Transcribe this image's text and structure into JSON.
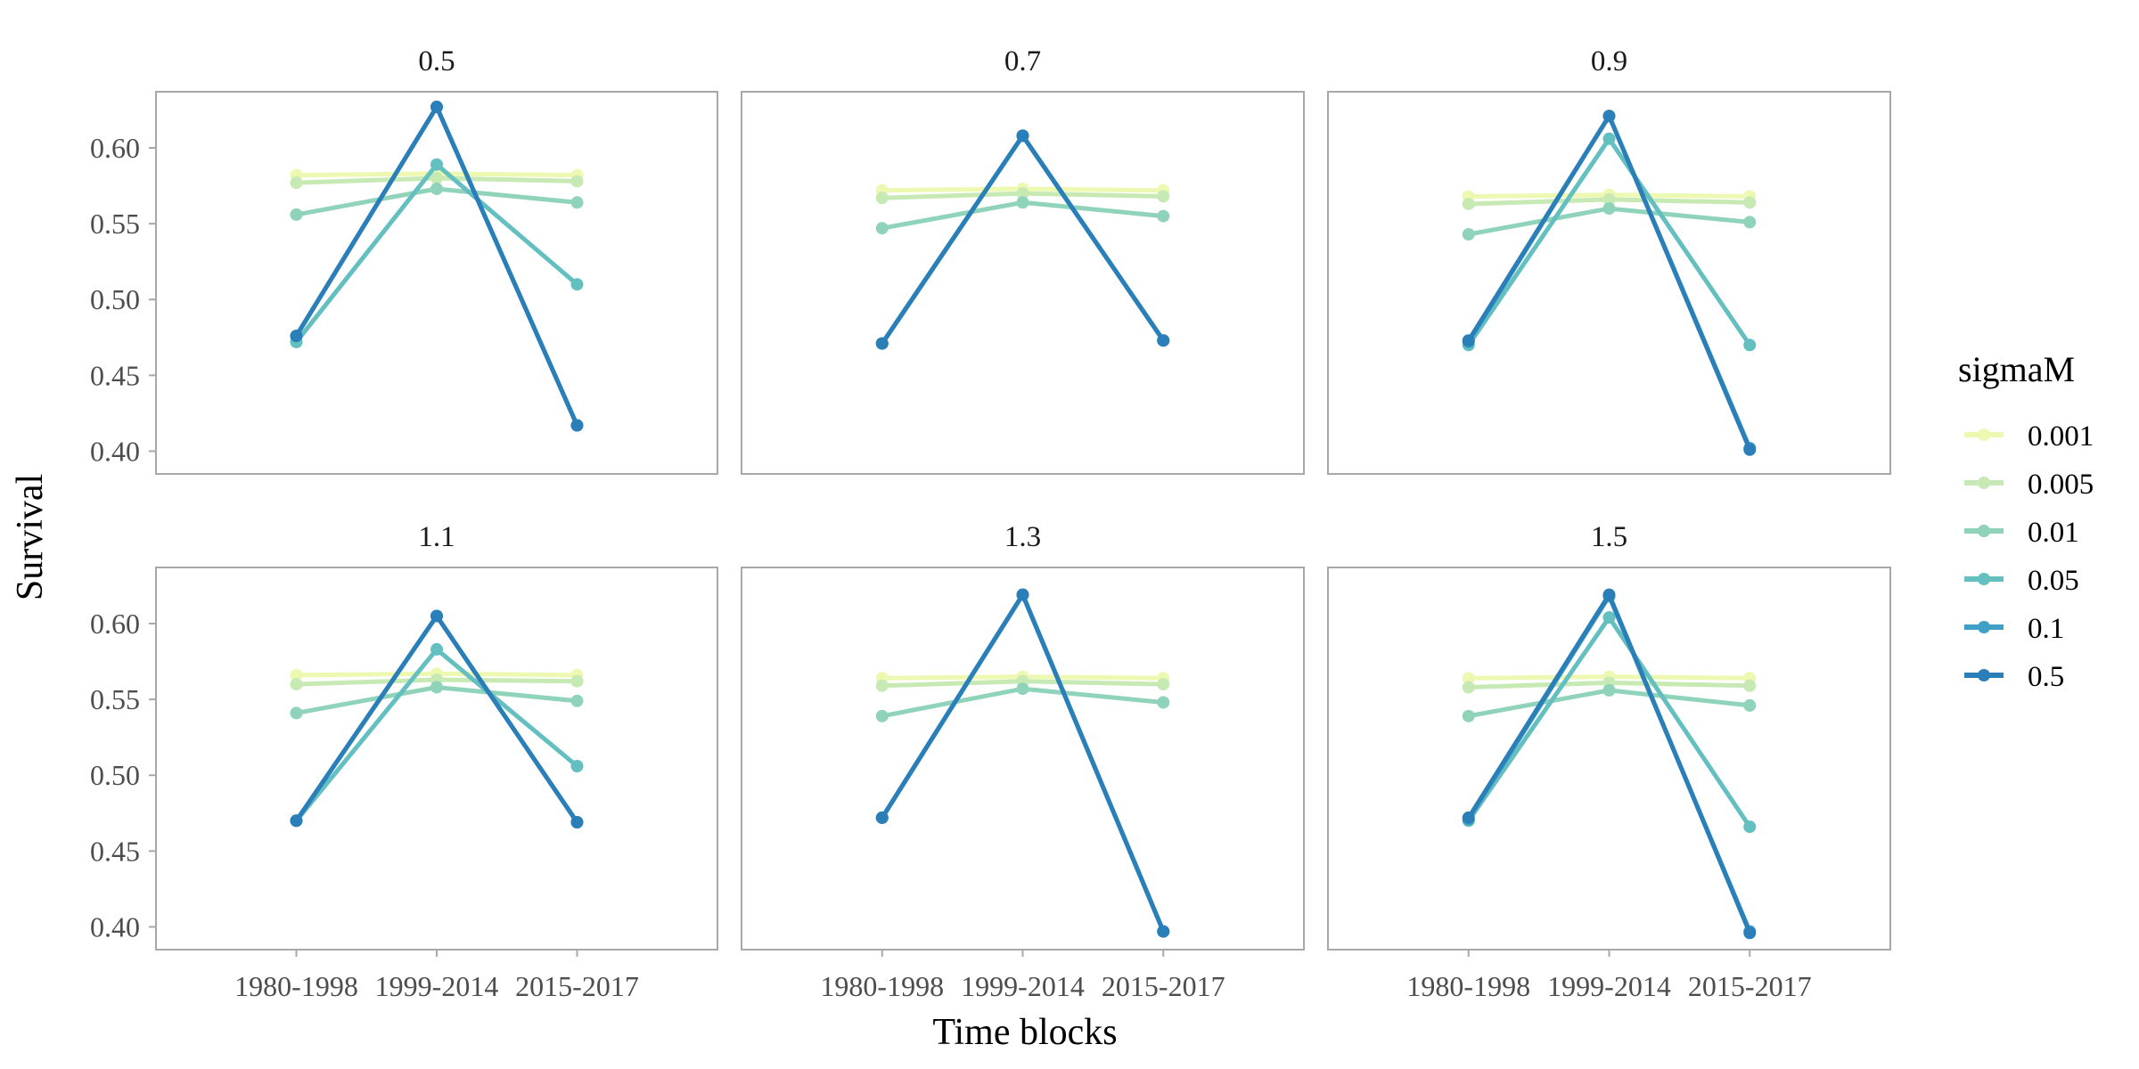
{
  "chart_data": {
    "type": "line",
    "xlabel": "Time blocks",
    "ylabel": "Survival",
    "categories": [
      "1980-1998",
      "1999-2014",
      "2015-2017"
    ],
    "ylim": [
      0.385,
      0.637
    ],
    "yticks": [
      0.4,
      0.45,
      0.5,
      0.55,
      0.6
    ],
    "ytick_labels": [
      "0.40",
      "0.45",
      "0.50",
      "0.55",
      "0.60"
    ],
    "grid": false,
    "legend": {
      "title": "sigmaM",
      "placement": "right",
      "entries": [
        "0.001",
        "0.005",
        "0.01",
        "0.05",
        "0.1",
        "0.5"
      ]
    },
    "series_colors": [
      "#EDF8B1",
      "#C7E9B4",
      "#8FD3BB",
      "#63BFC0",
      "#3E9FC7",
      "#2B7FB9"
    ],
    "facets": [
      {
        "title": "0.5",
        "series": [
          {
            "name": "0.001",
            "values": [
              0.582,
              0.583,
              0.582
            ]
          },
          {
            "name": "0.005",
            "values": [
              0.577,
              0.58,
              0.578
            ]
          },
          {
            "name": "0.01",
            "values": [
              0.556,
              0.573,
              0.564
            ]
          },
          {
            "name": "0.05",
            "values": [
              0.472,
              0.589,
              0.51
            ]
          },
          {
            "name": "0.1",
            "values": [
              0.476,
              0.627,
              0.417
            ]
          },
          {
            "name": "0.5",
            "values": [
              0.476,
              0.627,
              0.417
            ]
          }
        ]
      },
      {
        "title": "0.7",
        "series": [
          {
            "name": "0.001",
            "values": [
              0.572,
              0.573,
              0.572
            ]
          },
          {
            "name": "0.005",
            "values": [
              0.567,
              0.57,
              0.568
            ]
          },
          {
            "name": "0.01",
            "values": [
              0.547,
              0.564,
              0.555
            ]
          },
          {
            "name": "0.05",
            "values": [
              0.471,
              0.608,
              0.473
            ]
          },
          {
            "name": "0.1",
            "values": [
              0.471,
              0.608,
              0.473
            ]
          },
          {
            "name": "0.5",
            "values": [
              0.471,
              0.608,
              0.473
            ]
          }
        ]
      },
      {
        "title": "0.9",
        "series": [
          {
            "name": "0.001",
            "values": [
              0.568,
              0.569,
              0.568
            ]
          },
          {
            "name": "0.005",
            "values": [
              0.563,
              0.566,
              0.564
            ]
          },
          {
            "name": "0.01",
            "values": [
              0.543,
              0.56,
              0.551
            ]
          },
          {
            "name": "0.05",
            "values": [
              0.47,
              0.606,
              0.47
            ]
          },
          {
            "name": "0.1",
            "values": [
              0.472,
              0.621,
              0.402
            ]
          },
          {
            "name": "0.5",
            "values": [
              0.473,
              0.621,
              0.401
            ]
          }
        ]
      },
      {
        "title": "1.1",
        "series": [
          {
            "name": "0.001",
            "values": [
              0.566,
              0.567,
              0.566
            ]
          },
          {
            "name": "0.005",
            "values": [
              0.56,
              0.563,
              0.562
            ]
          },
          {
            "name": "0.01",
            "values": [
              0.541,
              0.558,
              0.549
            ]
          },
          {
            "name": "0.05",
            "values": [
              0.47,
              0.583,
              0.506
            ]
          },
          {
            "name": "0.1",
            "values": [
              0.47,
              0.605,
              0.469
            ]
          },
          {
            "name": "0.5",
            "values": [
              0.47,
              0.605,
              0.469
            ]
          }
        ]
      },
      {
        "title": "1.3",
        "series": [
          {
            "name": "0.001",
            "values": [
              0.564,
              0.565,
              0.564
            ]
          },
          {
            "name": "0.005",
            "values": [
              0.559,
              0.562,
              0.56
            ]
          },
          {
            "name": "0.01",
            "values": [
              0.539,
              0.557,
              0.548
            ]
          },
          {
            "name": "0.05",
            "values": [
              0.472,
              0.619,
              0.397
            ]
          },
          {
            "name": "0.1",
            "values": [
              0.472,
              0.619,
              0.397
            ]
          },
          {
            "name": "0.5",
            "values": [
              0.472,
              0.619,
              0.397
            ]
          }
        ]
      },
      {
        "title": "1.5",
        "series": [
          {
            "name": "0.001",
            "values": [
              0.564,
              0.565,
              0.564
            ]
          },
          {
            "name": "0.005",
            "values": [
              0.558,
              0.561,
              0.559
            ]
          },
          {
            "name": "0.01",
            "values": [
              0.539,
              0.556,
              0.546
            ]
          },
          {
            "name": "0.05",
            "values": [
              0.47,
              0.604,
              0.466
            ]
          },
          {
            "name": "0.1",
            "values": [
              0.471,
              0.618,
              0.397
            ]
          },
          {
            "name": "0.5",
            "values": [
              0.472,
              0.619,
              0.396
            ]
          }
        ]
      }
    ]
  }
}
